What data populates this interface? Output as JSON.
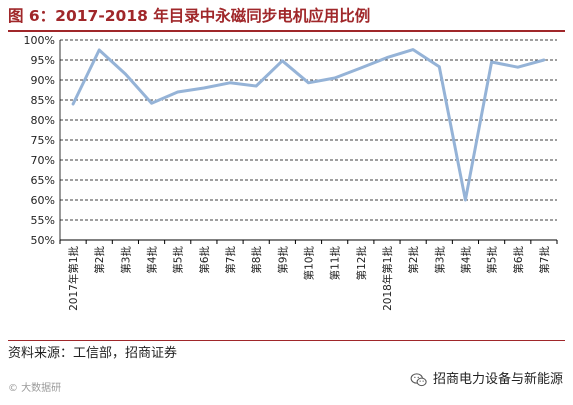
{
  "title": "图 6：2017-2018 年目录中永磁同步电机应用比例",
  "source": "资料来源：工信部，招商证券",
  "footer": {
    "watermark": "© 大数据研",
    "brand": "招商电力设备与新能源",
    "brand_icon": "wechat-icon"
  },
  "colors": {
    "title": "#A0272A",
    "line": "#95B3D7",
    "grid": "#000000"
  },
  "chart_data": {
    "type": "line",
    "title": "",
    "xlabel": "",
    "ylabel": "",
    "ylim": [
      50,
      100
    ],
    "y_ticks": [
      50,
      55,
      60,
      65,
      70,
      75,
      80,
      85,
      90,
      95,
      100
    ],
    "y_tick_labels": [
      "50%",
      "55%",
      "60%",
      "65%",
      "70%",
      "75%",
      "80%",
      "85%",
      "90%",
      "95%",
      "100%"
    ],
    "grid": "horizontal dashed",
    "legend": "none",
    "categories": [
      "2017年第1批",
      "第2批",
      "第3批",
      "第4批",
      "第5批",
      "第6批",
      "第7批",
      "第8批",
      "第9批",
      "第10批",
      "第11批",
      "第12批",
      "2018年第1批",
      "第2批",
      "第3批",
      "第4批",
      "第5批",
      "第6批",
      "第7批"
    ],
    "series": [
      {
        "values": [
          84,
          97.5,
          91.5,
          84.2,
          87,
          88,
          89.3,
          88.5,
          94.8,
          89.3,
          90.5,
          93,
          95.6,
          97.6,
          93.3,
          60,
          94.5,
          93.2,
          95
        ]
      }
    ]
  }
}
